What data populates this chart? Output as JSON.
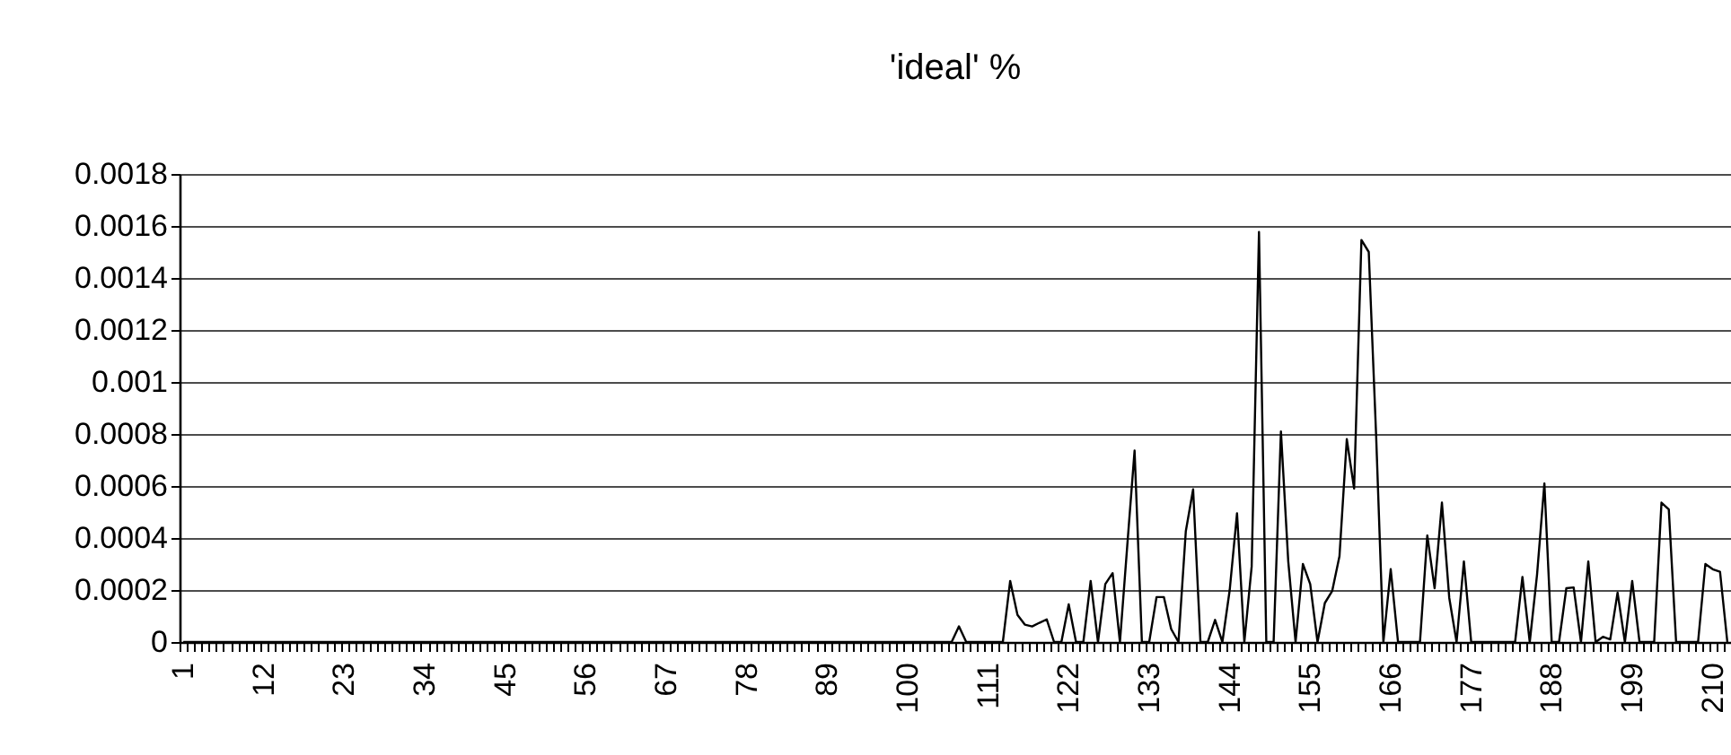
{
  "chart_data": {
    "type": "line",
    "title": "'ideal' %",
    "categories": [
      "1",
      null,
      null,
      null,
      null,
      null,
      null,
      null,
      null,
      null,
      null,
      "12",
      null,
      null,
      null,
      null,
      null,
      null,
      null,
      null,
      null,
      null,
      "23",
      null,
      null,
      null,
      null,
      null,
      null,
      null,
      null,
      null,
      null,
      "34",
      null,
      null,
      null,
      null,
      null,
      null,
      null,
      null,
      null,
      null,
      "45",
      null,
      null,
      null,
      null,
      null,
      null,
      null,
      null,
      null,
      null,
      "56",
      null,
      null,
      null,
      null,
      null,
      null,
      null,
      null,
      null,
      null,
      "67",
      null,
      null,
      null,
      null,
      null,
      null,
      null,
      null,
      null,
      null,
      "78",
      null,
      null,
      null,
      null,
      null,
      null,
      null,
      null,
      null,
      null,
      "89",
      null,
      null,
      null,
      null,
      null,
      null,
      null,
      null,
      null,
      null,
      "100",
      null,
      null,
      null,
      null,
      null,
      null,
      null,
      null,
      null,
      null,
      "111",
      null,
      null,
      null,
      null,
      null,
      null,
      null,
      null,
      null,
      null,
      "122",
      null,
      null,
      null,
      null,
      null,
      null,
      null,
      null,
      null,
      null,
      "133",
      null,
      null,
      null,
      null,
      null,
      null,
      null,
      null,
      null,
      null,
      "144",
      null,
      null,
      null,
      null,
      null,
      null,
      null,
      null,
      null,
      null,
      "155",
      null,
      null,
      null,
      null,
      null,
      null,
      null,
      null,
      null,
      null,
      "166",
      null,
      null,
      null,
      null,
      null,
      null,
      null,
      null,
      null,
      null,
      "177",
      null,
      null,
      null,
      null,
      null,
      null,
      null,
      null,
      null,
      null,
      "188",
      null,
      null,
      null,
      null,
      null,
      null,
      null,
      null,
      null,
      null,
      "199",
      null,
      null,
      null,
      null,
      null,
      null,
      null,
      null,
      null,
      null,
      "210",
      null,
      null
    ],
    "series": [
      {
        "color": "#000000",
        "values": [
          0,
          0,
          0,
          0,
          0,
          0,
          0,
          0,
          0,
          0,
          0,
          0,
          0,
          0,
          0,
          0,
          0,
          0,
          0,
          0,
          0,
          0,
          0,
          0,
          0,
          0,
          0,
          0,
          0,
          0,
          0,
          0,
          0,
          0,
          0,
          0,
          0,
          0,
          0,
          0,
          0,
          0,
          0,
          0,
          0,
          0,
          0,
          0,
          0,
          0,
          0,
          0,
          0,
          0,
          0,
          0,
          0,
          0,
          0,
          0,
          0,
          0,
          0,
          0,
          0,
          0,
          0,
          0,
          0,
          0,
          0,
          0,
          0,
          0,
          0,
          0,
          0,
          0,
          0,
          0,
          0,
          0,
          0,
          0,
          0,
          0,
          0,
          0,
          0,
          0,
          0,
          0,
          0,
          0,
          0,
          0,
          0,
          0,
          0,
          0,
          0,
          0,
          0,
          0,
          0,
          0,
          6e-05,
          0,
          0,
          0,
          0,
          0,
          0,
          0.000235,
          0.000104,
          6.7e-05,
          6e-05,
          7.4e-05,
          8.7e-05,
          0,
          0,
          0.000145,
          0,
          0,
          0.000235,
          0,
          0.000223,
          0.000265,
          0,
          0.00037,
          0.000736,
          0,
          0,
          0.000173,
          0.000173,
          5e-05,
          0,
          0.000426,
          0.000587,
          0,
          0,
          8.5e-05,
          0,
          0.0002,
          0.000495,
          0,
          0.00029,
          0.001577,
          0,
          0,
          0.00081,
          0.00031,
          0,
          0.0003,
          0.000223,
          0,
          0.00015,
          0.000196,
          0.00033,
          0.00078,
          0.00059,
          0.001546,
          0.0015,
          0.0008,
          0,
          0.00028,
          0,
          0,
          0,
          0,
          0.00041,
          0.000207,
          0.000536,
          0.00017,
          0,
          0.00031,
          0,
          0,
          0,
          0,
          0,
          0,
          0,
          0.00025,
          0,
          0.00026,
          0.00061,
          0,
          0,
          0.000207,
          0.00021,
          0,
          0.00031,
          0,
          2e-05,
          1e-05,
          0.00019,
          0,
          0.000235,
          0,
          0,
          0,
          0.000536,
          0.00051,
          0,
          0,
          0,
          0,
          0.0003,
          0.00028,
          0.00027,
          0
        ]
      }
    ],
    "ylim": [
      0,
      0.0018
    ],
    "yticks": [
      0,
      0.0002,
      0.0004,
      0.0006,
      0.0008,
      0.001,
      0.0012,
      0.0014,
      0.0016,
      0.0018
    ],
    "grid": "y",
    "line_style": "solid",
    "marker": "none"
  }
}
